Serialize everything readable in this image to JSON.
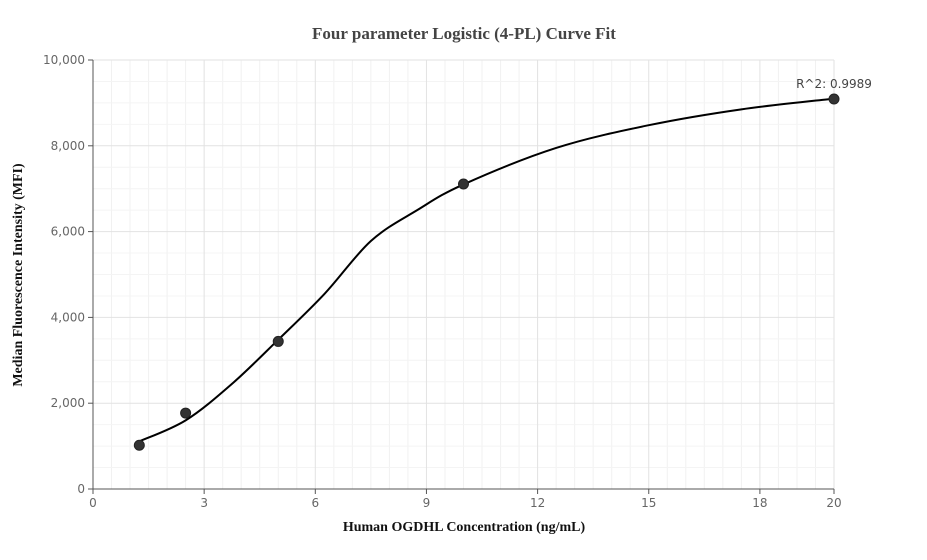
{
  "chart_data": {
    "type": "scatter",
    "title": "Four parameter Logistic (4-PL) Curve Fit",
    "xlabel": "Human OGDHL Concentration (ng/mL)",
    "ylabel": "Median Fluorescence Intensity (MFI)",
    "xlim": [
      0,
      20
    ],
    "ylim": [
      0,
      10000
    ],
    "x_ticks": [
      "0",
      "3",
      "6",
      "9",
      "12",
      "15",
      "18",
      "20"
    ],
    "x_tick_values": [
      0,
      3,
      6,
      9,
      12,
      15,
      18,
      20
    ],
    "y_ticks": [
      "0",
      "2,000",
      "4,000",
      "6,000",
      "8,000",
      "10,000"
    ],
    "y_tick_values": [
      0,
      2000,
      4000,
      6000,
      8000,
      10000
    ],
    "grid": true,
    "series": [
      {
        "points": [
          {
            "x": 1.25,
            "y": 1020
          },
          {
            "x": 2.5,
            "y": 1770
          },
          {
            "x": 5,
            "y": 3440
          },
          {
            "x": 10,
            "y": 7110
          },
          {
            "x": 20,
            "y": 9090
          }
        ],
        "color": "#333333"
      }
    ],
    "fit_curve": {
      "points": [
        {
          "x": 1.25,
          "y": 1110
        },
        {
          "x": 2.5,
          "y": 1600
        },
        {
          "x": 3.75,
          "y": 2450
        },
        {
          "x": 5,
          "y": 3480
        },
        {
          "x": 6.25,
          "y": 4550
        },
        {
          "x": 7.5,
          "y": 5780
        },
        {
          "x": 8.75,
          "y": 6500
        },
        {
          "x": 10,
          "y": 7100
        },
        {
          "x": 12.5,
          "y": 7950
        },
        {
          "x": 15,
          "y": 8480
        },
        {
          "x": 17.5,
          "y": 8850
        },
        {
          "x": 20,
          "y": 9100
        }
      ],
      "color": "#000000"
    },
    "annotations": [
      {
        "text": "R^2: 0.9989",
        "x": 20,
        "y": 9090
      }
    ]
  }
}
